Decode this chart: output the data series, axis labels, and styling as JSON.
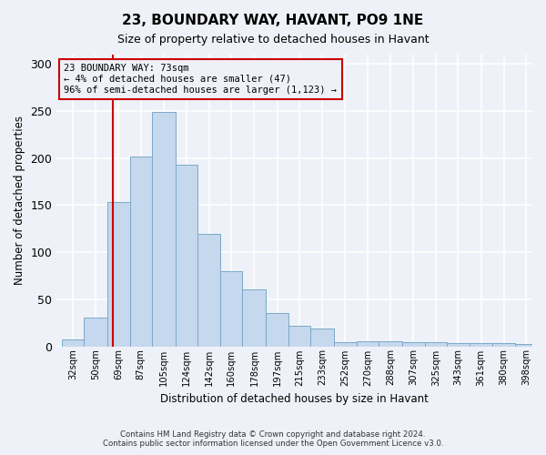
{
  "title1": "23, BOUNDARY WAY, HAVANT, PO9 1NE",
  "title2": "Size of property relative to detached houses in Havant",
  "xlabel": "Distribution of detached houses by size in Havant",
  "ylabel": "Number of detached properties",
  "footer1": "Contains HM Land Registry data © Crown copyright and database right 2024.",
  "footer2": "Contains public sector information licensed under the Open Government Licence v3.0.",
  "annotation_line1": "23 BOUNDARY WAY: 73sqm",
  "annotation_line2": "← 4% of detached houses are smaller (47)",
  "annotation_line3": "96% of semi-detached houses are larger (1,123) →",
  "bar_color": "#c5d8ed",
  "bar_edge_color": "#7aaac8",
  "vline_color": "#cc0000",
  "annotation_box_color": "#cc0000",
  "categories": [
    "32sqm",
    "50sqm",
    "69sqm",
    "87sqm",
    "105sqm",
    "124sqm",
    "142sqm",
    "160sqm",
    "178sqm",
    "197sqm",
    "215sqm",
    "233sqm",
    "252sqm",
    "270sqm",
    "288sqm",
    "307sqm",
    "325sqm",
    "343sqm",
    "361sqm",
    "380sqm",
    "398sqm"
  ],
  "bar_heights": [
    7,
    30,
    153,
    202,
    249,
    193,
    119,
    80,
    60,
    35,
    22,
    19,
    4,
    5,
    5,
    4,
    4,
    3,
    3,
    3,
    2
  ],
  "vline_x": 73,
  "bin_edges": [
    32,
    50,
    69,
    87,
    105,
    124,
    142,
    160,
    178,
    197,
    215,
    233,
    252,
    270,
    288,
    307,
    325,
    343,
    361,
    380,
    398,
    416
  ],
  "ylim": [
    0,
    310
  ],
  "yticks": [
    0,
    50,
    100,
    150,
    200,
    250,
    300
  ],
  "background_color": "#eef2f8",
  "grid_color": "#ffffff"
}
